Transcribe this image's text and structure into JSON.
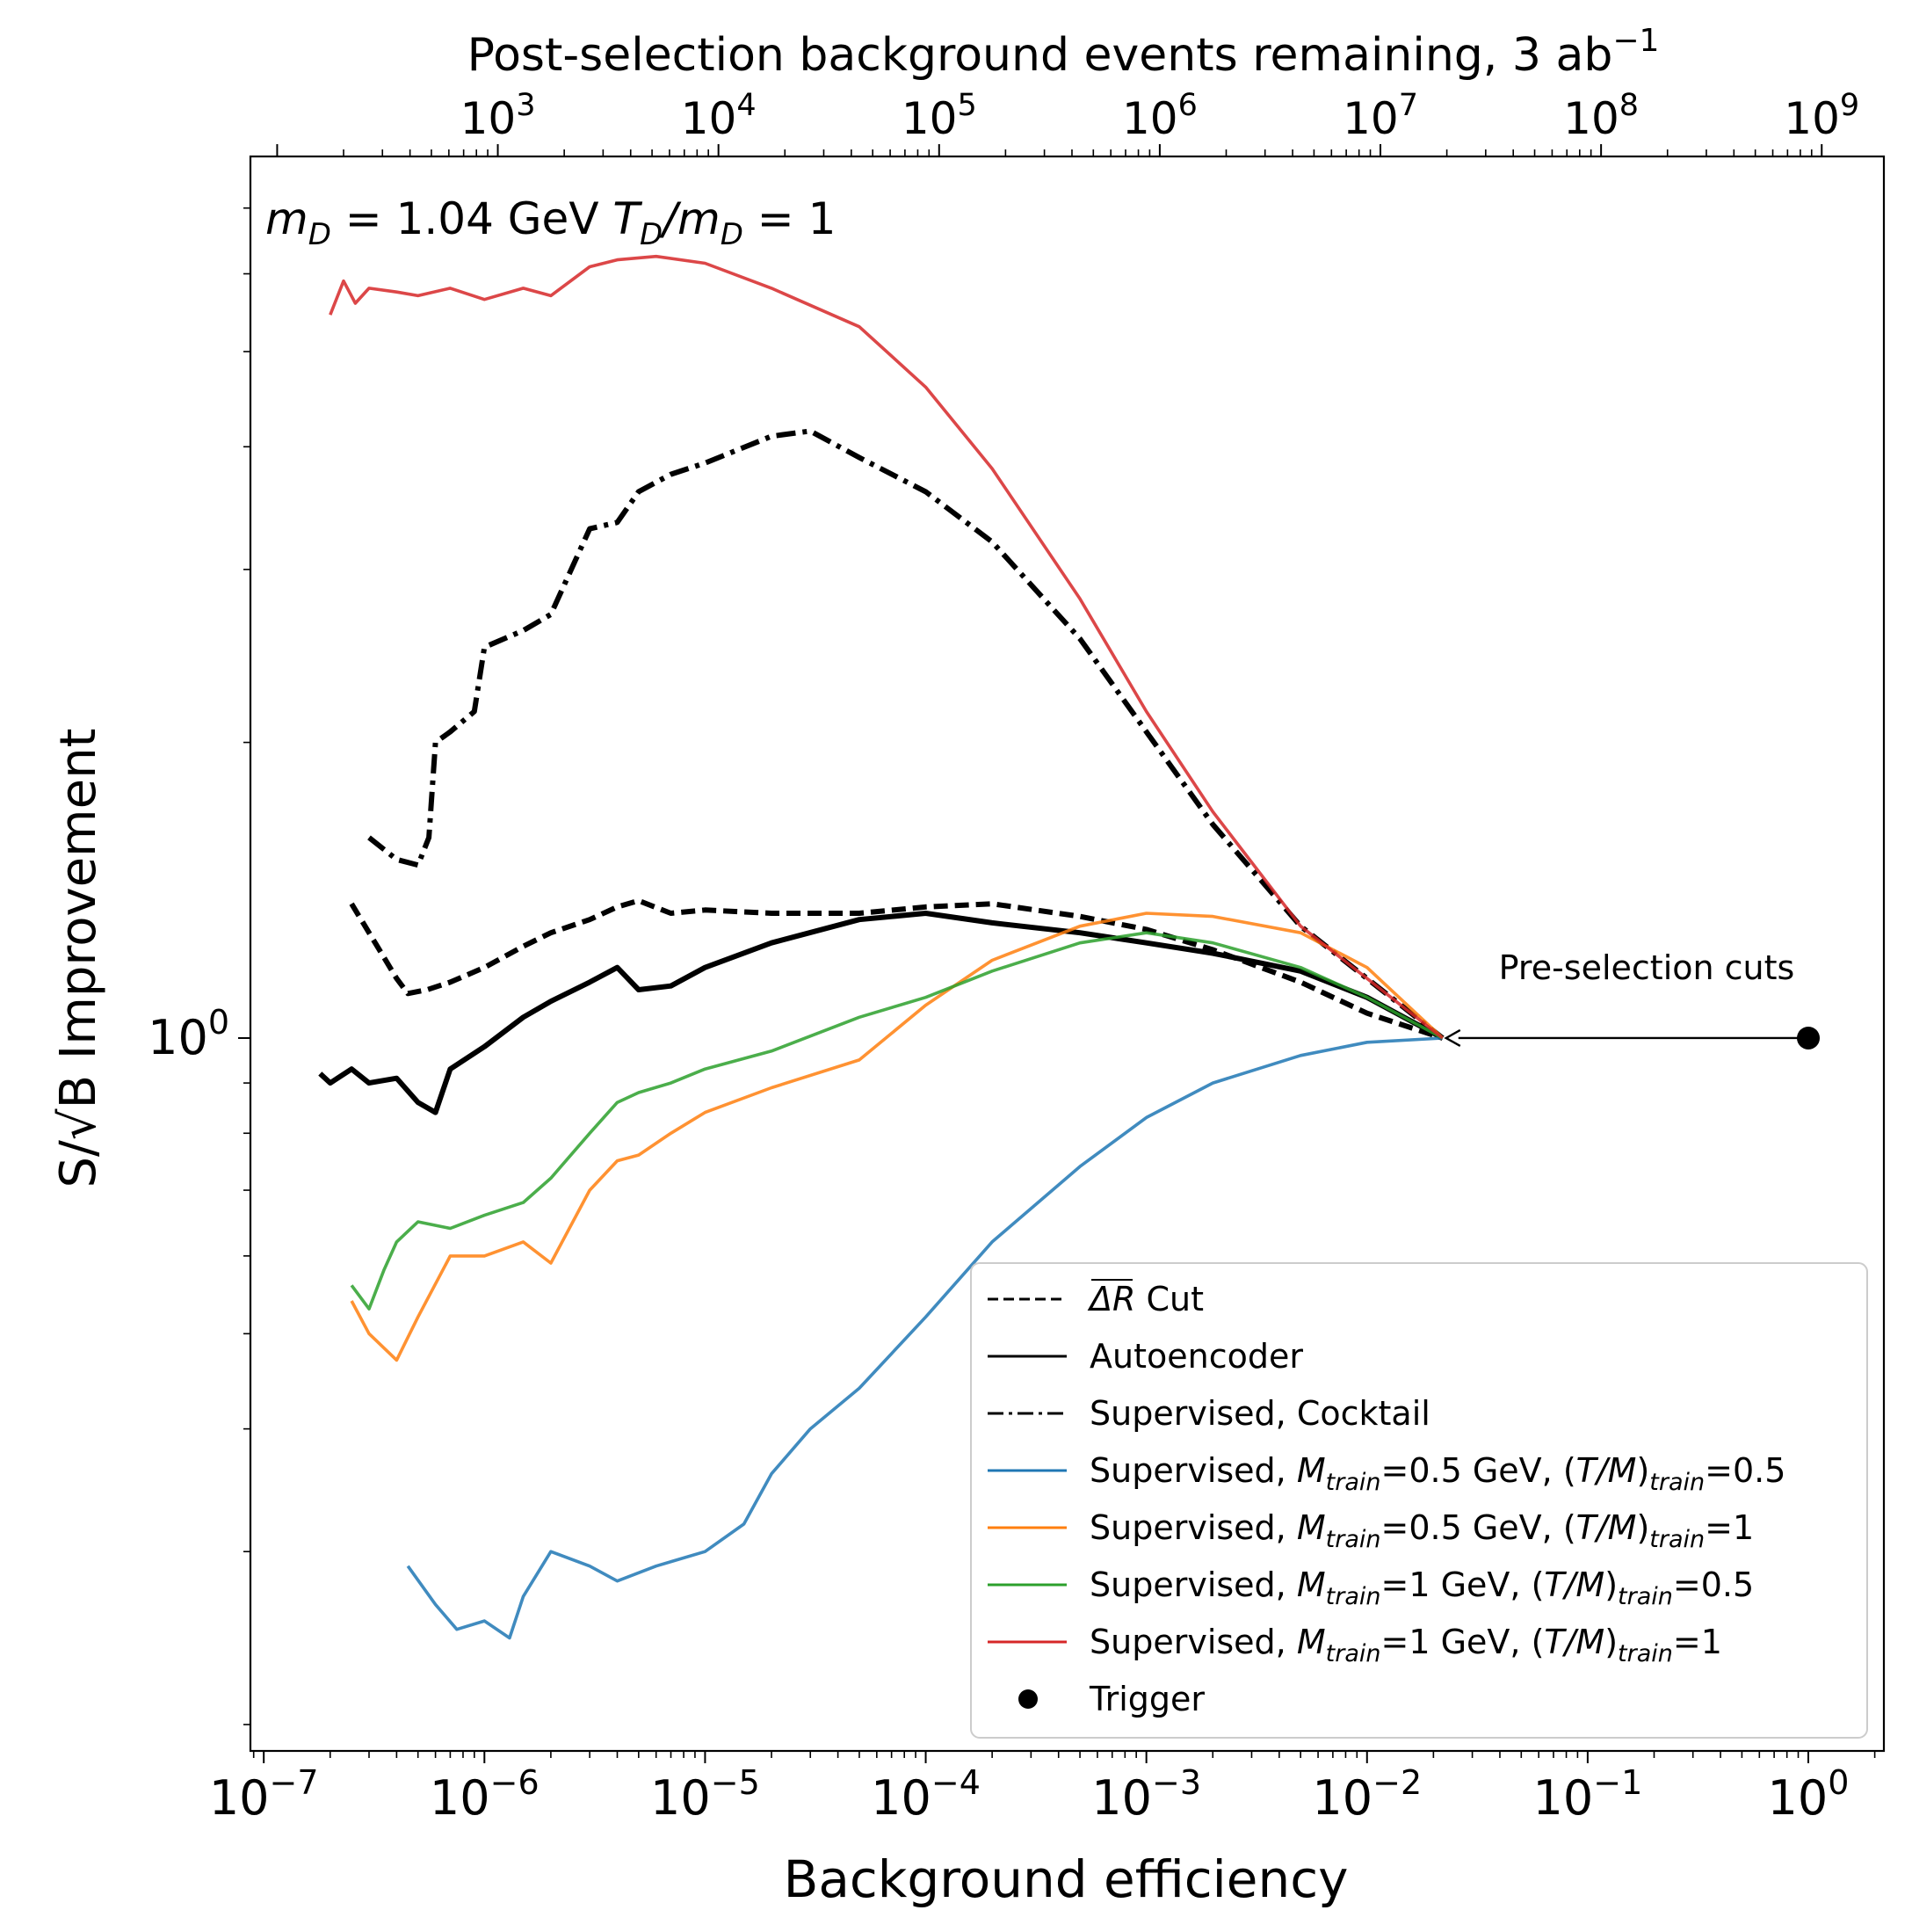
{
  "chart_data": {
    "type": "line",
    "xscale": "log",
    "yscale": "log",
    "xlabel": "Background efficiency",
    "ylabel": "S/√B Improvement",
    "top_xlabel": "Post-selection background events remaining, 3 ab",
    "top_xlabel_sup": "−1",
    "xlim": [
      8.7e-08,
      2.2
    ],
    "ylim": [
      0.188,
      7.9
    ],
    "annotation_text": "m_D = 1.04 GeV T_D/m_D = 1",
    "annotation": {
      "m": "m",
      "D1": "D",
      "eq1": " = 1.04 GeV ",
      "T": "T",
      "D2": "D",
      "slash": "/m",
      "D3": "D",
      "eq2": " = 1"
    },
    "bottom_ticks": [
      {
        "value": 1e-07,
        "mantissa": "10",
        "exp": "−7"
      },
      {
        "value": 1e-06,
        "mantissa": "10",
        "exp": "−6"
      },
      {
        "value": 1e-05,
        "mantissa": "10",
        "exp": "−5"
      },
      {
        "value": 0.0001,
        "mantissa": "10",
        "exp": "−4"
      },
      {
        "value": 0.001,
        "mantissa": "10",
        "exp": "−3"
      },
      {
        "value": 0.01,
        "mantissa": "10",
        "exp": "−2"
      },
      {
        "value": 0.1,
        "mantissa": "10",
        "exp": "−1"
      },
      {
        "value": 1,
        "mantissa": "10",
        "exp": "0"
      }
    ],
    "top_ticks": [
      {
        "value": 1.15e-06,
        "mantissa": "10",
        "exp": "3"
      },
      {
        "value": 1.15e-05,
        "mantissa": "10",
        "exp": "4"
      },
      {
        "value": 0.000115,
        "mantissa": "10",
        "exp": "5"
      },
      {
        "value": 0.00115,
        "mantissa": "10",
        "exp": "6"
      },
      {
        "value": 0.0115,
        "mantissa": "10",
        "exp": "7"
      },
      {
        "value": 0.115,
        "mantissa": "10",
        "exp": "8"
      },
      {
        "value": 1.15,
        "mantissa": "10",
        "exp": "9"
      }
    ],
    "y_ticks": [
      {
        "value": 1,
        "mantissa": "10",
        "exp": "0"
      }
    ],
    "series": [
      {
        "name": "ΔR Cut",
        "color": "#000000",
        "style": "dashed",
        "x": [
          2.5e-07,
          3.2e-07,
          4e-07,
          4.5e-07,
          5.5e-07,
          7e-07,
          1e-06,
          1.5e-06,
          2e-06,
          3e-06,
          4e-06,
          5e-06,
          7e-06,
          1e-05,
          2e-05,
          5e-05,
          0.0001,
          0.0002,
          0.0005,
          0.001,
          0.002,
          0.005,
          0.01,
          0.022
        ],
        "y": [
          1.37,
          1.25,
          1.15,
          1.11,
          1.12,
          1.14,
          1.18,
          1.24,
          1.28,
          1.32,
          1.36,
          1.38,
          1.34,
          1.35,
          1.34,
          1.34,
          1.36,
          1.37,
          1.33,
          1.29,
          1.23,
          1.14,
          1.06,
          1.0
        ]
      },
      {
        "name": "Autoencoder",
        "color": "#000000",
        "style": "solid",
        "x": [
          1.8e-07,
          2e-07,
          2.5e-07,
          3e-07,
          4e-07,
          5e-07,
          6e-07,
          7e-07,
          1e-06,
          1.5e-06,
          2e-06,
          3e-06,
          4e-06,
          5e-06,
          7e-06,
          1e-05,
          2e-05,
          5e-05,
          0.0001,
          0.0002,
          0.0005,
          0.001,
          0.002,
          0.005,
          0.01,
          0.022
        ],
        "y": [
          0.92,
          0.9,
          0.93,
          0.9,
          0.91,
          0.86,
          0.84,
          0.93,
          0.98,
          1.05,
          1.09,
          1.14,
          1.18,
          1.12,
          1.13,
          1.18,
          1.25,
          1.32,
          1.34,
          1.31,
          1.28,
          1.25,
          1.22,
          1.17,
          1.1,
          1.0
        ]
      },
      {
        "name": "Supervised, Cocktail",
        "color": "#000000",
        "style": "dashdot",
        "x": [
          3e-07,
          4e-07,
          5e-07,
          5.6e-07,
          6e-07,
          7e-07,
          9e-07,
          1e-06,
          1.5e-06,
          2e-06,
          3e-06,
          4e-06,
          5e-06,
          7e-06,
          1e-05,
          2e-05,
          3e-05,
          5e-05,
          0.0001,
          0.0002,
          0.0005,
          0.001,
          0.002,
          0.005,
          0.01,
          0.022
        ],
        "y": [
          1.6,
          1.52,
          1.5,
          1.6,
          2.0,
          2.05,
          2.15,
          2.5,
          2.6,
          2.7,
          3.3,
          3.35,
          3.6,
          3.75,
          3.85,
          4.1,
          4.15,
          3.9,
          3.6,
          3.2,
          2.55,
          2.05,
          1.65,
          1.3,
          1.15,
          1.0
        ]
      },
      {
        "name": "Supervised, M_train=0.5 GeV, (T/M)_train=0.5",
        "color": "#1f77b4",
        "style": "solid",
        "x": [
          4.5e-07,
          6e-07,
          7.5e-07,
          1e-06,
          1.3e-06,
          1.5e-06,
          2e-06,
          3e-06,
          4e-06,
          6e-06,
          1e-05,
          1.5e-05,
          2e-05,
          3e-05,
          5e-05,
          0.0001,
          0.0002,
          0.0005,
          0.001,
          0.002,
          0.005,
          0.01,
          0.022
        ],
        "y": [
          0.29,
          0.265,
          0.25,
          0.255,
          0.245,
          0.27,
          0.3,
          0.29,
          0.28,
          0.29,
          0.3,
          0.32,
          0.36,
          0.4,
          0.44,
          0.52,
          0.62,
          0.74,
          0.83,
          0.9,
          0.96,
          0.99,
          1.0
        ]
      },
      {
        "name": "Supervised, M_train=0.5 GeV, (T/M)_train=1",
        "color": "#ff7f0e",
        "style": "solid",
        "x": [
          2.5e-07,
          3e-07,
          4e-07,
          5e-07,
          7e-07,
          1e-06,
          1.5e-06,
          2e-06,
          3e-06,
          4e-06,
          5e-06,
          7e-06,
          1e-05,
          2e-05,
          5e-05,
          0.0001,
          0.0002,
          0.0005,
          0.001,
          0.002,
          0.005,
          0.01,
          0.022
        ],
        "y": [
          0.54,
          0.5,
          0.47,
          0.52,
          0.6,
          0.6,
          0.62,
          0.59,
          0.7,
          0.75,
          0.76,
          0.8,
          0.84,
          0.89,
          0.95,
          1.08,
          1.2,
          1.3,
          1.34,
          1.33,
          1.28,
          1.18,
          1.0
        ]
      },
      {
        "name": "Supervised, M_train=1 GeV, (T/M)_train=0.5",
        "color": "#2ca02c",
        "style": "solid",
        "x": [
          2.5e-07,
          3e-07,
          3.5e-07,
          4e-07,
          5e-07,
          7e-07,
          1e-06,
          1.5e-06,
          2e-06,
          3e-06,
          4e-06,
          5e-06,
          7e-06,
          1e-05,
          2e-05,
          5e-05,
          0.0001,
          0.0002,
          0.0005,
          0.001,
          0.002,
          0.005,
          0.01,
          0.022
        ],
        "y": [
          0.56,
          0.53,
          0.58,
          0.62,
          0.65,
          0.64,
          0.66,
          0.68,
          0.72,
          0.8,
          0.86,
          0.88,
          0.9,
          0.93,
          0.97,
          1.05,
          1.1,
          1.17,
          1.25,
          1.28,
          1.25,
          1.18,
          1.1,
          1.0
        ]
      },
      {
        "name": "Supervised, M_train=1 GeV, (T/M)_train=1",
        "color": "#d62728",
        "style": "solid",
        "x": [
          2e-07,
          2.3e-07,
          2.6e-07,
          3e-07,
          4e-07,
          5e-07,
          7e-07,
          1e-06,
          1.5e-06,
          2e-06,
          3e-06,
          4e-06,
          6e-06,
          1e-05,
          2e-05,
          5e-05,
          0.0001,
          0.0002,
          0.0005,
          0.001,
          0.002,
          0.005,
          0.01,
          0.022
        ],
        "y": [
          5.45,
          5.9,
          5.6,
          5.8,
          5.75,
          5.7,
          5.8,
          5.65,
          5.8,
          5.7,
          6.1,
          6.2,
          6.25,
          6.15,
          5.8,
          5.3,
          4.6,
          3.8,
          2.8,
          2.15,
          1.7,
          1.3,
          1.15,
          1.0
        ]
      }
    ],
    "trigger_point": {
      "name": "Trigger",
      "x": 1.0,
      "y": 1.0,
      "color": "#000000"
    },
    "arrow": {
      "from_x": 1.0,
      "from_y": 1.0,
      "to_x": 0.022,
      "to_y": 1.0,
      "label": "Pre-selection cuts"
    },
    "legend": {
      "position": "lower-right",
      "items": [
        {
          "style": "dashed",
          "color": "#000000",
          "label_pre": "ΔR",
          "label_post": " Cut"
        },
        {
          "style": "solid",
          "color": "#000000",
          "label_pre": "Autoencoder",
          "label_post": ""
        },
        {
          "style": "dashdot",
          "color": "#000000",
          "label_pre": "Supervised, Cocktail",
          "label_post": ""
        },
        {
          "style": "solid",
          "color": "#1f77b4",
          "a": "Supervised, ",
          "m": "M",
          "msub": "train",
          "mval": "=0.5 GeV, (",
          "tm": "T/M",
          "tail": ")",
          "tmsub": "train",
          "tmval": "=0.5"
        },
        {
          "style": "solid",
          "color": "#ff7f0e",
          "a": "Supervised, ",
          "m": "M",
          "msub": "train",
          "mval": "=0.5 GeV, (",
          "tm": "T/M",
          "tail": ")",
          "tmsub": "train",
          "tmval": "=1"
        },
        {
          "style": "solid",
          "color": "#2ca02c",
          "a": "Supervised, ",
          "m": "M",
          "msub": "train",
          "mval": "=1 GeV, (",
          "tm": "T/M",
          "tail": ")",
          "tmsub": "train",
          "tmval": "=0.5"
        },
        {
          "style": "solid",
          "color": "#d62728",
          "a": "Supervised, ",
          "m": "M",
          "msub": "train",
          "mval": "=1 GeV, (",
          "tm": "T/M",
          "tail": ")",
          "tmsub": "train",
          "tmval": "=1"
        },
        {
          "style": "marker",
          "color": "#000000",
          "label_pre": "Trigger",
          "label_post": ""
        }
      ]
    }
  }
}
